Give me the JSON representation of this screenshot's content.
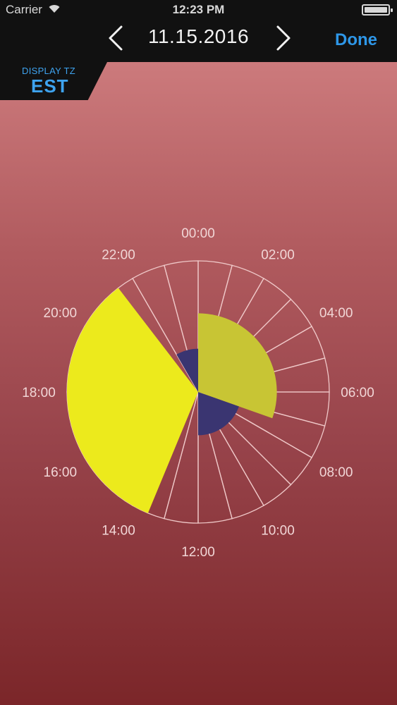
{
  "status_bar": {
    "carrier": "Carrier",
    "time": "12:23 PM",
    "battery_level": 1.0
  },
  "nav": {
    "date": "11.15.2016",
    "done_label": "Done",
    "prev_icon": "chevron-left-icon",
    "next_icon": "chevron-right-icon"
  },
  "timezone": {
    "label": "DISPLAY TZ",
    "value": "EST"
  },
  "colors": {
    "accent": "#2e97e8",
    "sleep_block": "#ecea1c",
    "secondary_block": "#c8c534",
    "center_block": "#3a3571",
    "ring_lines": "#efc8c8"
  },
  "clock": {
    "hour_labels": [
      "00:00",
      "02:00",
      "04:00",
      "06:00",
      "08:00",
      "10:00",
      "12:00",
      "14:00",
      "16:00",
      "18:00",
      "20:00",
      "22:00"
    ],
    "segments_per_day": 24,
    "segment_fractions": [
      0.8,
      0.8,
      0.8,
      0.8,
      0.8,
      0.8,
      0.8,
      0.8,
      0.8,
      0.8,
      0.8,
      0.8,
      0.8,
      0.8,
      0.8,
      0.8,
      0.8,
      0.8,
      0.8,
      0.8,
      0.8,
      0.8,
      0.8,
      0.8
    ],
    "blocks": [
      {
        "name": "large-yellow-block",
        "start_hour": 13.5,
        "end_hour": 21.5,
        "radius_fraction": 1.0,
        "color": "#ecea1c"
      },
      {
        "name": "olive-yellow-block",
        "start_hour": 0.0,
        "end_hour": 7.3,
        "radius_fraction": 0.6,
        "color": "#c8c534"
      },
      {
        "name": "navy-block-morning",
        "start_hour": 7.3,
        "end_hour": 12.0,
        "radius_fraction": 0.33,
        "color": "#3a3571"
      },
      {
        "name": "navy-block-night",
        "start_hour": 22.0,
        "end_hour": 24.0,
        "radius_fraction": 0.33,
        "color": "#3a3571"
      }
    ]
  }
}
